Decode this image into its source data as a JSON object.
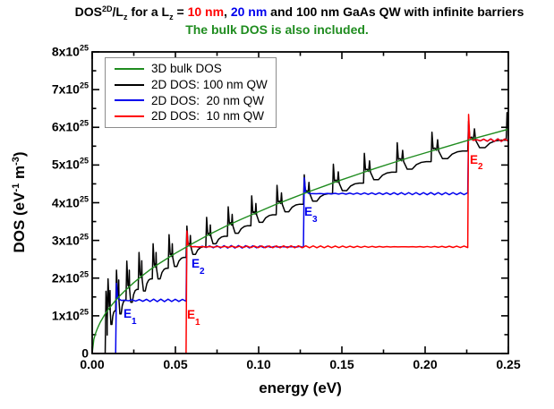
{
  "page": {
    "background": "#ffffff"
  },
  "title": {
    "segments": [
      {
        "t": "DOS",
        "color": "#000000"
      },
      {
        "t": "2D",
        "color": "#000000",
        "sup": true
      },
      {
        "t": "/L",
        "color": "#000000"
      },
      {
        "t": "z",
        "color": "#000000",
        "sub": true
      },
      {
        "t": " for a L",
        "color": "#000000"
      },
      {
        "t": "z",
        "color": "#000000",
        "sub": true
      },
      {
        "t": " = ",
        "color": "#000000"
      },
      {
        "t": "10 nm",
        "color": "#ff0000"
      },
      {
        "t": ", ",
        "color": "#000000"
      },
      {
        "t": "20 nm",
        "color": "#0000ee"
      },
      {
        "t": " and 100 nm GaAs QW with infinite barriers",
        "color": "#000000"
      }
    ]
  },
  "subtitle": {
    "text": "The bulk DOS is also included.",
    "color": "#1f8c1f"
  },
  "chart_data": {
    "type": "line",
    "xlabel": "energy (eV)",
    "ylabel_segments": [
      {
        "t": "DOS (eV"
      },
      {
        "t": "-1",
        "sup": true
      },
      {
        "t": " m"
      },
      {
        "t": "-3",
        "sup": true
      },
      {
        "t": ")"
      }
    ],
    "xlim": [
      0,
      0.25
    ],
    "ylim_units_1e25": [
      0,
      8
    ],
    "grid": false,
    "x_major_ticks": [
      {
        "value": 0.0,
        "label": "0.00"
      },
      {
        "value": 0.05,
        "label": "0.05"
      },
      {
        "value": 0.1,
        "label": "0.10"
      },
      {
        "value": 0.15,
        "label": "0.15"
      },
      {
        "value": 0.2,
        "label": "0.20"
      },
      {
        "value": 0.25,
        "label": "0.25"
      }
    ],
    "x_minor_tick_values": [
      0.025,
      0.075,
      0.125,
      0.175,
      0.225
    ],
    "y_major_ticks": [
      {
        "value": 0,
        "base": "0",
        "exp": ""
      },
      {
        "value": 1,
        "base": "1x10",
        "exp": "25"
      },
      {
        "value": 2,
        "base": "2x10",
        "exp": "25"
      },
      {
        "value": 3,
        "base": "3x10",
        "exp": "25"
      },
      {
        "value": 4,
        "base": "4x10",
        "exp": "25"
      },
      {
        "value": 5,
        "base": "5x10",
        "exp": "25"
      },
      {
        "value": 6,
        "base": "6x10",
        "exp": "25"
      },
      {
        "value": 7,
        "base": "7x10",
        "exp": "25"
      },
      {
        "value": 8,
        "base": "8x10",
        "exp": "25"
      }
    ],
    "y_minor_tick_values": [
      0.5,
      1.5,
      2.5,
      3.5,
      4.5,
      5.5,
      6.5,
      7.5
    ],
    "legend": {
      "position": "top-left",
      "entries": [
        {
          "label": "3D bulk DOS",
          "color": "#1f8c1f"
        },
        {
          "label": "2D DOS: 100 nm QW",
          "color": "#000000"
        },
        {
          "label": "2D DOS:  20 nm QW",
          "color": "#0000ee"
        },
        {
          "label": "2D DOS:  10 nm QW",
          "color": "#ff0000"
        }
      ]
    },
    "series": [
      {
        "name": "2D DOS: 100 nm QW",
        "kind": "staircase",
        "plateau_style": "cup",
        "color": "#000000",
        "width": 1.5,
        "zero_until_eV": 0.0078,
        "steps": [
          {
            "E": 0.00056,
            "p": 0.28,
            "spike": 0.8,
            "dev": 1.8
          },
          {
            "E": 0.00226,
            "p": 0.57,
            "spike": 0.8,
            "dev": 1.8
          },
          {
            "E": 0.00508,
            "p": 0.85,
            "spike": 0.8,
            "dev": 1.8
          },
          {
            "E": 0.00902,
            "p": 1.13,
            "spike": 0.85,
            "dev": 1.8
          },
          {
            "E": 0.0141,
            "p": 1.41,
            "spike": 0.8,
            "dev": 1.8
          },
          {
            "E": 0.0203,
            "p": 1.7,
            "spike": 0.75,
            "dev": 1.7
          },
          {
            "E": 0.02764,
            "p": 1.98,
            "spike": 0.7,
            "dev": 1.6
          },
          {
            "E": 0.0361,
            "p": 2.26,
            "spike": 0.65,
            "dev": 1.4
          },
          {
            "E": 0.04568,
            "p": 2.55,
            "spike": 0.6,
            "dev": 1.2
          },
          {
            "E": 0.0564,
            "p": 2.83,
            "spike": 0.55,
            "dev": 1.0
          },
          {
            "E": 0.06824,
            "p": 3.11,
            "spike": 0.5,
            "dev": 1.0
          },
          {
            "E": 0.08122,
            "p": 3.39,
            "spike": 0.5,
            "dev": 1.0
          },
          {
            "E": 0.09532,
            "p": 3.68,
            "spike": 0.5,
            "dev": 1.0
          },
          {
            "E": 0.11054,
            "p": 3.96,
            "spike": 0.5,
            "dev": 1.0
          },
          {
            "E": 0.1269,
            "p": 4.24,
            "spike": 0.5,
            "dev": 1.0
          },
          {
            "E": 0.14438,
            "p": 4.52,
            "spike": 0.5,
            "dev": 1.0
          },
          {
            "E": 0.163,
            "p": 4.81,
            "spike": 0.5,
            "dev": 1.0
          },
          {
            "E": 0.18274,
            "p": 5.09,
            "spike": 0.5,
            "dev": 1.0
          },
          {
            "E": 0.2036,
            "p": 5.37,
            "spike": 0.5,
            "dev": 1.0
          },
          {
            "E": 0.2256,
            "p": 5.66,
            "spike": 0.5,
            "dev": 1.0
          },
          {
            "E": 0.24872,
            "p": 5.94,
            "spike": 0.45,
            "dev": 0.8
          }
        ]
      },
      {
        "name": "2D DOS: 20 nm QW",
        "kind": "staircase",
        "plateau_style": "ripple",
        "color": "#0000ee",
        "width": 1.5,
        "zero_until_eV": 0,
        "ripple": 0.05,
        "steps": [
          {
            "E": 0.0141,
            "p": 1.41,
            "spike": 0.45,
            "dev": 1
          },
          {
            "E": 0.0564,
            "p": 2.83,
            "spike": 0.4,
            "dev": 1
          },
          {
            "E": 0.1269,
            "p": 4.24,
            "spike": 0.42,
            "dev": 1
          },
          {
            "E": 0.2256,
            "p": 5.66,
            "spike": 0.4,
            "dev": 1
          }
        ]
      },
      {
        "name": "2D DOS: 10 nm QW",
        "kind": "staircase",
        "plateau_style": "ripple",
        "color": "#ff0000",
        "width": 1.5,
        "zero_until_eV": 0,
        "ripple": 0.045,
        "steps": [
          {
            "E": 0.0564,
            "p": 2.83,
            "spike": 0.42,
            "dev": 1
          },
          {
            "E": 0.2256,
            "p": 5.66,
            "spike": 0.68,
            "dev": 1
          }
        ]
      },
      {
        "name": "3D bulk DOS",
        "kind": "curve",
        "color": "#1f8c1f",
        "width": 1.4,
        "points": [
          [
            0,
            0
          ],
          [
            0.001,
            0.38
          ],
          [
            0.002,
            0.53
          ],
          [
            0.003,
            0.65
          ],
          [
            0.004,
            0.75
          ],
          [
            0.005,
            0.84
          ],
          [
            0.0075,
            1.03
          ],
          [
            0.01,
            1.19
          ],
          [
            0.015,
            1.46
          ],
          [
            0.02,
            1.68
          ],
          [
            0.025,
            1.88
          ],
          [
            0.03,
            2.06
          ],
          [
            0.035,
            2.23
          ],
          [
            0.04,
            2.38
          ],
          [
            0.045,
            2.52
          ],
          [
            0.05,
            2.66
          ],
          [
            0.06,
            2.91
          ],
          [
            0.07,
            3.15
          ],
          [
            0.08,
            3.37
          ],
          [
            0.09,
            3.57
          ],
          [
            0.1,
            3.76
          ],
          [
            0.11,
            3.95
          ],
          [
            0.12,
            4.12
          ],
          [
            0.13,
            4.29
          ],
          [
            0.14,
            4.45
          ],
          [
            0.15,
            4.61
          ],
          [
            0.16,
            4.76
          ],
          [
            0.17,
            4.91
          ],
          [
            0.18,
            5.05
          ],
          [
            0.19,
            5.19
          ],
          [
            0.2,
            5.32
          ],
          [
            0.21,
            5.45
          ],
          [
            0.22,
            5.58
          ],
          [
            0.23,
            5.71
          ],
          [
            0.24,
            5.83
          ],
          [
            0.25,
            5.95
          ]
        ]
      }
    ],
    "annotations": [
      {
        "text": "E",
        "sub": "1",
        "series": "20nm",
        "color": "#0000ee",
        "E": 0.0188,
        "v": 1.21
      },
      {
        "text": "E",
        "sub": "1",
        "series": "10nm",
        "color": "#ff0000",
        "E": 0.057,
        "v": 1.19
      },
      {
        "text": "E",
        "sub": "2",
        "series": "20nm",
        "color": "#0000ee",
        "E": 0.0597,
        "v": 2.54
      },
      {
        "text": "E",
        "sub": "3",
        "series": "20nm",
        "color": "#0000ee",
        "E": 0.1274,
        "v": 3.92
      },
      {
        "text": "E",
        "sub": "2",
        "series": "10nm",
        "color": "#ff0000",
        "E": 0.2269,
        "v": 5.3
      }
    ]
  }
}
